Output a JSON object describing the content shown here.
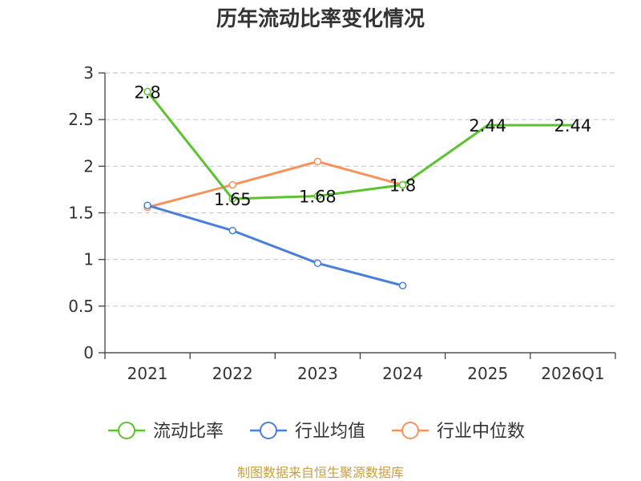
{
  "chart_data": {
    "type": "line",
    "title": "历年流动比率变化情况",
    "categories": [
      "2021",
      "2022",
      "2023",
      "2024",
      "2025",
      "2026Q1"
    ],
    "ylim": [
      0,
      3
    ],
    "yticks": [
      0,
      0.5,
      1,
      1.5,
      2,
      2.5,
      3
    ],
    "ytick_labels": [
      "0",
      "0.5",
      "1",
      "1.5",
      "2",
      "2.5",
      "3"
    ],
    "grid": true,
    "legend_position": "bottom",
    "series": [
      {
        "name": "流动比率",
        "color": "#5cc22f",
        "values": [
          2.8,
          1.65,
          1.68,
          1.8,
          2.44,
          2.44
        ],
        "labels": [
          "2.8",
          "1.65",
          "1.68",
          "1.8",
          "2.44",
          "2.44"
        ],
        "markers": [
          true,
          true,
          true,
          true,
          false,
          false
        ]
      },
      {
        "name": "行业均值",
        "color": "#4a7fd8",
        "values": [
          1.58,
          1.31,
          0.96,
          0.72,
          null,
          null
        ],
        "markers": [
          true,
          true,
          true,
          true,
          false,
          false
        ]
      },
      {
        "name": "行业中位数",
        "color": "#f7925c",
        "values": [
          1.56,
          1.8,
          2.05,
          1.8,
          null,
          null
        ],
        "markers": [
          true,
          true,
          true,
          true,
          false,
          false
        ]
      }
    ]
  },
  "source": "制图数据来自恒生聚源数据库"
}
